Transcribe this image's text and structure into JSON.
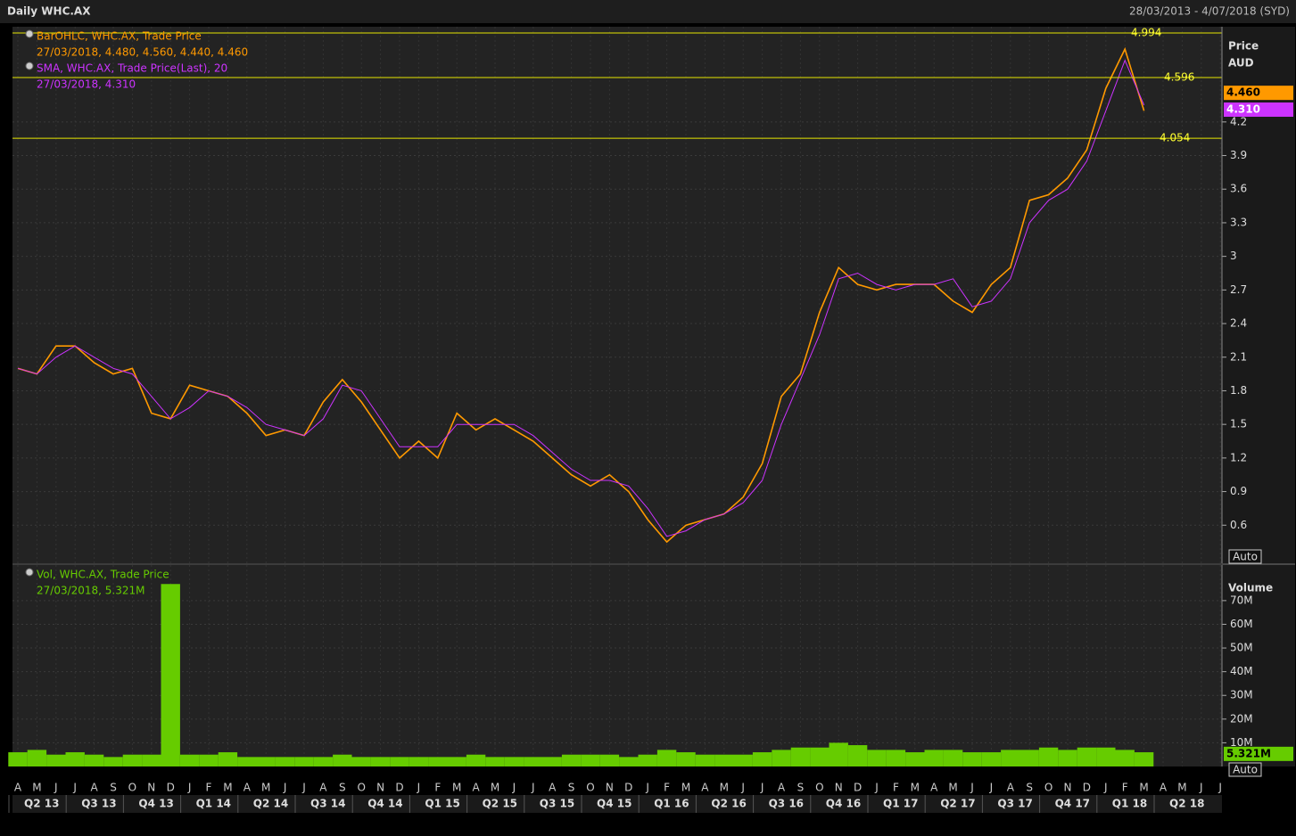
{
  "header": {
    "title": "Daily WHC.AX",
    "range": "28/03/2013 - 4/07/2018 (SYD)"
  },
  "chart_data": [
    {
      "type": "line",
      "ylabel": "Price",
      "yunit": "AUD",
      "autoscale_label": "Auto",
      "categories": [
        "A",
        "M",
        "J",
        "J",
        "A",
        "S",
        "O",
        "N",
        "D",
        "J",
        "F",
        "M",
        "A",
        "M",
        "J",
        "J",
        "A",
        "S",
        "O",
        "N",
        "D",
        "J",
        "F",
        "M",
        "A",
        "M",
        "J",
        "J",
        "A",
        "S",
        "O",
        "N",
        "D",
        "J",
        "F",
        "M",
        "A",
        "M",
        "J",
        "J",
        "A",
        "S",
        "O",
        "N",
        "D",
        "J",
        "F",
        "M",
        "A",
        "M",
        "J",
        "J",
        "A",
        "S",
        "O",
        "N",
        "D",
        "J",
        "F",
        "M",
        "A",
        "M",
        "J",
        "J"
      ],
      "quarters": [
        "Q2 13",
        "Q3 13",
        "Q4 13",
        "Q1 14",
        "Q2 14",
        "Q3 14",
        "Q4 14",
        "Q1 15",
        "Q2 15",
        "Q3 15",
        "Q4 15",
        "Q1 16",
        "Q2 16",
        "Q3 16",
        "Q4 16",
        "Q1 17",
        "Q2 17",
        "Q3 17",
        "Q4 17",
        "Q1 18",
        "Q2 18"
      ],
      "series": [
        {
          "name": "BarOHLC, WHC.AX, Trade Price",
          "detail": "27/03/2018, 4.480, 4.560, 4.440, 4.460",
          "color": "#ff9900",
          "values": [
            2.0,
            1.95,
            2.2,
            2.2,
            2.05,
            1.95,
            2.0,
            1.6,
            1.55,
            1.85,
            1.8,
            1.75,
            1.6,
            1.4,
            1.45,
            1.4,
            1.7,
            1.9,
            1.7,
            1.45,
            1.2,
            1.35,
            1.2,
            1.6,
            1.45,
            1.55,
            1.45,
            1.35,
            1.2,
            1.05,
            0.95,
            1.05,
            0.9,
            0.65,
            0.45,
            0.6,
            0.65,
            0.7,
            0.85,
            1.15,
            1.75,
            1.95,
            2.5,
            2.9,
            2.75,
            2.7,
            2.75,
            2.75,
            2.75,
            2.6,
            2.5,
            2.75,
            2.9,
            3.5,
            3.55,
            3.7,
            3.95,
            4.5,
            4.85,
            4.3,
            null,
            null,
            null,
            null
          ]
        },
        {
          "name": "SMA, WHC.AX, Trade Price(Last),  20",
          "detail": "27/03/2018, 4.310",
          "color": "#cc33ff",
          "values": [
            2.0,
            1.95,
            2.1,
            2.2,
            2.1,
            2.0,
            1.95,
            1.75,
            1.55,
            1.65,
            1.8,
            1.75,
            1.65,
            1.5,
            1.45,
            1.4,
            1.55,
            1.85,
            1.8,
            1.55,
            1.3,
            1.3,
            1.3,
            1.5,
            1.5,
            1.5,
            1.5,
            1.4,
            1.25,
            1.1,
            1.0,
            1.0,
            0.95,
            0.75,
            0.5,
            0.55,
            0.65,
            0.7,
            0.8,
            1.0,
            1.5,
            1.9,
            2.3,
            2.8,
            2.85,
            2.75,
            2.7,
            2.75,
            2.75,
            2.8,
            2.55,
            2.6,
            2.8,
            3.3,
            3.5,
            3.6,
            3.85,
            4.3,
            4.75,
            4.35,
            null,
            null,
            null,
            null
          ]
        }
      ],
      "hlines": [
        4.994,
        4.596,
        4.054
      ],
      "last_tags": [
        {
          "value": 4.46,
          "label": "4.460",
          "color": "#ff9900"
        },
        {
          "value": 4.31,
          "label": "4.310",
          "color": "#cc33ff"
        }
      ],
      "ylim": [
        0.26,
        5.05
      ],
      "yticks": [
        0.6,
        0.9,
        1.2,
        1.5,
        1.8,
        2.1,
        2.4,
        2.7,
        3,
        3.3,
        3.6,
        3.9,
        4.2
      ],
      "grid": true
    },
    {
      "type": "bar",
      "ylabel": "Volume",
      "autoscale_label": "Auto",
      "series": [
        {
          "name": "Vol, WHC.AX, Trade Price",
          "detail": "27/03/2018, 5.321M",
          "color": "#66cc00",
          "values": [
            6000000,
            7000000,
            5000000,
            6000000,
            5000000,
            4000000,
            5000000,
            5000000,
            77000000,
            5000000,
            5000000,
            6000000,
            4000000,
            4000000,
            4000000,
            4000000,
            4000000,
            5000000,
            4000000,
            4000000,
            4000000,
            4000000,
            4000000,
            4000000,
            5000000,
            4000000,
            4000000,
            4000000,
            4000000,
            5000000,
            5000000,
            5000000,
            4000000,
            5000000,
            7000000,
            6000000,
            5000000,
            5000000,
            5000000,
            6000000,
            7000000,
            8000000,
            8000000,
            10000000,
            9000000,
            7000000,
            7000000,
            6000000,
            7000000,
            7000000,
            6000000,
            6000000,
            7000000,
            7000000,
            8000000,
            7000000,
            8000000,
            8000000,
            7000000,
            6000000,
            null,
            null,
            null,
            null
          ]
        }
      ],
      "last_tags": [
        {
          "value": 5321000,
          "label": "5.321M",
          "color": "#66cc00"
        }
      ],
      "ylim": [
        0,
        85000000
      ],
      "yticks": [
        {
          "value": 10000000,
          "label": "10M"
        },
        {
          "value": 20000000,
          "label": "20M"
        },
        {
          "value": 30000000,
          "label": "30M"
        },
        {
          "value": 40000000,
          "label": "40M"
        },
        {
          "value": 50000000,
          "label": "50M"
        },
        {
          "value": 60000000,
          "label": "60M"
        },
        {
          "value": 70000000,
          "label": "70M"
        }
      ],
      "grid": true
    }
  ]
}
